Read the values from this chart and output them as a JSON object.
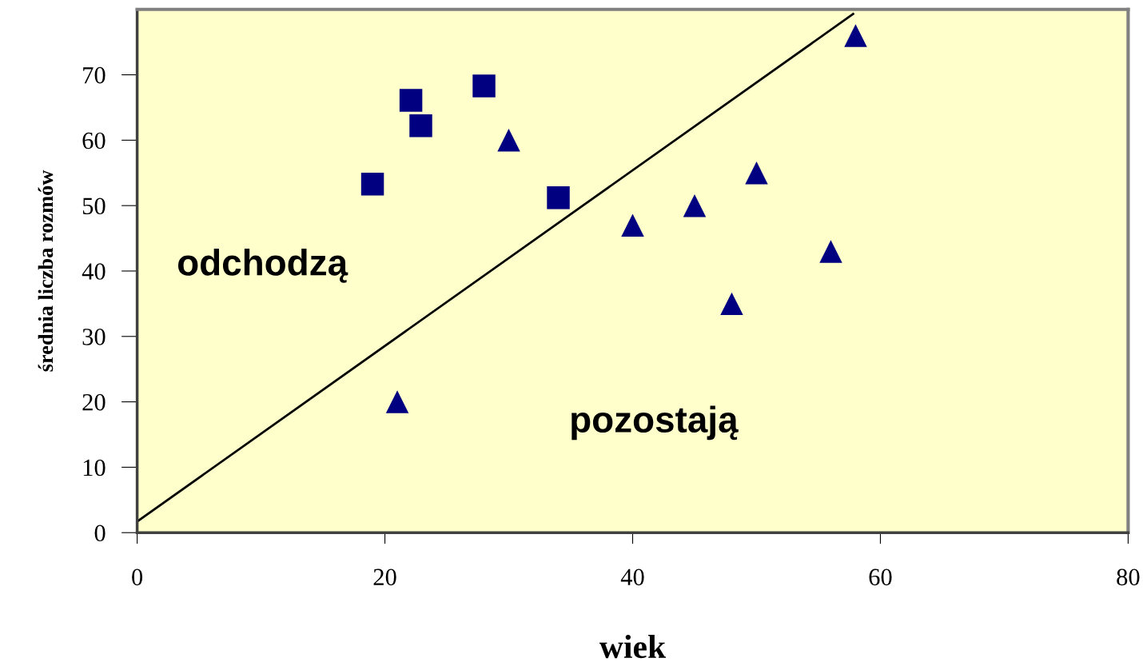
{
  "chart_data": {
    "type": "scatter",
    "xlabel": "wiek",
    "ylabel": "średnia liczba rozmów",
    "xlim": [
      0,
      80
    ],
    "xticks": [
      0,
      20,
      40,
      60,
      80
    ],
    "ylim": [
      0,
      80
    ],
    "yticks": [
      0,
      10,
      20,
      30,
      40,
      50,
      60,
      70
    ],
    "grid": false,
    "legend": false,
    "annotations": [
      "odchodzą",
      "pozostają"
    ],
    "series": [
      {
        "type": "scatter",
        "marker": "square",
        "color": "#000080",
        "x": [
          19.0,
          22.1,
          22.9,
          28.0,
          34.0
        ],
        "values": [
          53.3,
          66.1,
          62.2,
          68.3,
          51.2
        ]
      },
      {
        "type": "scatter",
        "marker": "triangle",
        "color": "#000080",
        "x": [
          21,
          30,
          40,
          45,
          48,
          50,
          56,
          58
        ],
        "values": [
          20,
          60,
          47,
          50,
          35,
          55,
          43,
          76
        ]
      },
      {
        "type": "line",
        "marker": "none",
        "line_style": "solid",
        "color": "#000000",
        "x": [
          0,
          57.8
        ],
        "values": [
          1.7,
          79.3
        ]
      }
    ]
  }
}
